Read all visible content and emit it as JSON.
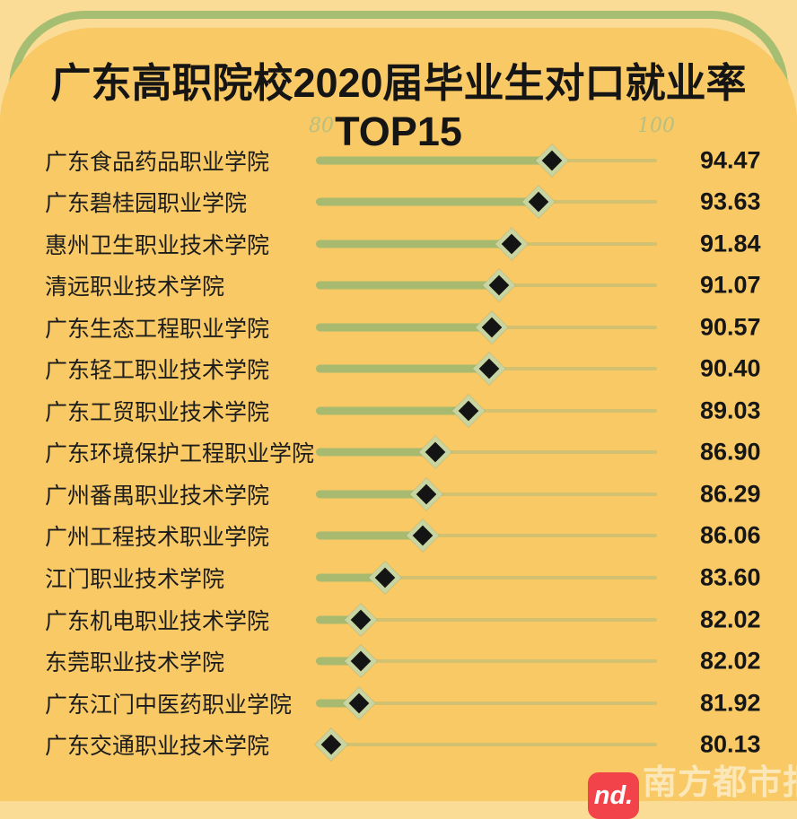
{
  "title": "广东高职院校2020届毕业生对口就业率TOP15",
  "watermark": {
    "logo_text": "nd.",
    "brand": "南方都市报"
  },
  "chart_data": {
    "type": "scatter",
    "title": "广东高职院校2020届毕业生对口就业率TOP15",
    "xlabel": "",
    "ylabel": "",
    "xlim": [
      80,
      100
    ],
    "x_ticks": [
      "80",
      "100"
    ],
    "grid": false,
    "legend": false,
    "marker": "diamond",
    "categories": [
      "广东食品药品职业学院",
      "广东碧桂园职业学院",
      "惠州卫生职业技术学院",
      "清远职业技术学院",
      "广东生态工程职业学院",
      "广东轻工职业技术学院",
      "广东工贸职业技术学院",
      "广东环境保护工程职业学院",
      "广州番禺职业技术学院",
      "广州工程技术职业学院",
      "江门职业技术学院",
      "广东机电职业技术学院",
      "东莞职业技术学院",
      "广东江门中医药职业学院",
      "广东交通职业技术学院"
    ],
    "values": [
      94.47,
      93.63,
      91.84,
      91.07,
      90.57,
      90.4,
      89.03,
      86.9,
      86.29,
      86.06,
      83.6,
      82.02,
      82.02,
      81.92,
      80.13
    ],
    "value_labels": [
      "94.47",
      "93.63",
      "91.84",
      "91.07",
      "90.57",
      "90.40",
      "89.03",
      "86.90",
      "86.29",
      "86.06",
      "83.60",
      "82.02",
      "82.02",
      "81.92",
      "80.13"
    ],
    "colors": {
      "card_background": "#f8c965",
      "page_background": "#fbdc96",
      "frame_green": "#a5be71",
      "track_fill": "#a7ba70",
      "marker_black": "#141414",
      "marker_ring": "#c9d5a0",
      "text": "#161616",
      "tick_text": "#b7bf81",
      "logo_red": "#f2434b"
    }
  }
}
